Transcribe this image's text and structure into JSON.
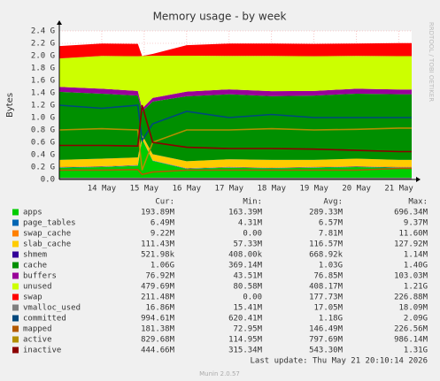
{
  "chart_data": {
    "type": "area",
    "title": "Memory usage - by week",
    "y_label": "Bytes",
    "watermark": "RRDTOOL / TOBI OETIKER",
    "last_update": "Last update: Thu May 21 20:10:14 2026",
    "version": "Munin 2.0.57",
    "legend_columns": [
      "Cur:",
      "Min:",
      "Avg:",
      "Max:"
    ],
    "x": [
      13,
      14,
      14.85,
      14.95,
      15.2,
      16,
      17,
      18,
      19,
      20,
      21,
      21.3
    ],
    "xlim": [
      13,
      21.3
    ],
    "xticks": [
      {
        "value": 14,
        "label": "14 May"
      },
      {
        "value": 15,
        "label": "15 May"
      },
      {
        "value": 16,
        "label": "16 May"
      },
      {
        "value": 17,
        "label": "17 May"
      },
      {
        "value": 18,
        "label": "18 May"
      },
      {
        "value": 19,
        "label": "19 May"
      },
      {
        "value": 20,
        "label": "20 May"
      },
      {
        "value": 21,
        "label": "21 May"
      }
    ],
    "ylim": [
      0,
      2400000000
    ],
    "yticks": [
      {
        "value": 0,
        "label": "0.0"
      },
      {
        "value": 200000000,
        "label": "0.2 G"
      },
      {
        "value": 400000000,
        "label": "0.4 G"
      },
      {
        "value": 600000000,
        "label": "0.6 G"
      },
      {
        "value": 800000000,
        "label": "0.8 G"
      },
      {
        "value": 1000000000,
        "label": "1.0 G"
      },
      {
        "value": 1200000000,
        "label": "1.2 G"
      },
      {
        "value": 1400000000,
        "label": "1.4 G"
      },
      {
        "value": 1600000000,
        "label": "1.6 G"
      },
      {
        "value": 1800000000,
        "label": "1.8 G"
      },
      {
        "value": 2000000000,
        "label": "2.0 G"
      },
      {
        "value": 2200000000,
        "label": "2.2 G"
      },
      {
        "value": 2400000000,
        "label": "2.4 G"
      }
    ],
    "grid": true,
    "series": [
      {
        "name": "apps",
        "color": "#00cc00",
        "stack": true,
        "cur": "193.89M",
        "min": "163.39M",
        "avg": "289.33M",
        "max": "696.34M",
        "values": [
          190000000.0,
          200000000.0,
          220000000.0,
          650000000.0,
          300000000.0,
          170000000.0,
          190000000.0,
          180000000.0,
          190000000.0,
          200000000.0,
          190000000.0,
          190000000.0
        ]
      },
      {
        "name": "page_tables",
        "color": "#0066b3",
        "stack": true,
        "cur": "6.49M",
        "min": "4.31M",
        "avg": "6.57M",
        "max": "9.37M",
        "values": [
          6500000.0,
          6500000.0,
          6500000.0,
          9000000.0,
          6000000.0,
          6500000.0,
          6500000.0,
          6500000.0,
          6500000.0,
          6500000.0,
          6500000.0,
          6500000.0
        ]
      },
      {
        "name": "swap_cache",
        "color": "#ff8000",
        "stack": true,
        "cur": "9.22M",
        "min": "0.00",
        "avg": "7.81M",
        "max": "11.60M",
        "values": [
          9000000.0,
          9000000.0,
          9000000.0,
          0,
          2000000.0,
          8000000.0,
          9000000.0,
          9000000.0,
          9000000.0,
          9000000.0,
          9000000.0,
          9000000.0
        ]
      },
      {
        "name": "slab_cache",
        "color": "#ffcc00",
        "stack": true,
        "cur": "111.43M",
        "min": "57.33M",
        "avg": "116.57M",
        "max": "127.92M",
        "values": [
          110000000.0,
          120000000.0,
          120000000.0,
          60000000.0,
          100000000.0,
          110000000.0,
          120000000.0,
          120000000.0,
          110000000.0,
          120000000.0,
          110000000.0,
          110000000.0
        ]
      },
      {
        "name": "shmem",
        "color": "#330099",
        "stack": true,
        "cur": "521.98k",
        "min": "408.00k",
        "avg": "668.92k",
        "max": "1.14M",
        "values": [
          500000.0,
          500000.0,
          500000.0,
          400000.0,
          500000.0,
          600000.0,
          700000.0,
          700000.0,
          600000.0,
          500000.0,
          500000.0,
          500000.0
        ]
      },
      {
        "name": "cache",
        "color": "#008f00",
        "stack": true,
        "cur": "1.06G",
        "min": "369.14M",
        "avg": "1.03G",
        "max": "1.40G",
        "values": [
          1100000000.0,
          1050000000.0,
          1000000000.0,
          380000000.0,
          850000000.0,
          1050000000.0,
          1050000000.0,
          1030000000.0,
          1040000000.0,
          1050000000.0,
          1060000000.0,
          1060000000.0
        ]
      },
      {
        "name": "buffers",
        "color": "#990099",
        "stack": true,
        "cur": "76.92M",
        "min": "43.51M",
        "avg": "76.85M",
        "max": "103.03M",
        "values": [
          80000000.0,
          80000000.0,
          75000000.0,
          45000000.0,
          60000000.0,
          75000000.0,
          80000000.0,
          80000000.0,
          75000000.0,
          80000000.0,
          77000000.0,
          77000000.0
        ]
      },
      {
        "name": "unused",
        "color": "#ccff00",
        "stack": true,
        "cur": "479.69M",
        "min": "80.58M",
        "avg": "408.17M",
        "max": "1.21G",
        "values": [
          460000000.0,
          530000000.0,
          560000000.0,
          850000000.0,
          680000000.0,
          580000000.0,
          540000000.0,
          570000000.0,
          560000000.0,
          530000000.0,
          540000000.0,
          540000000.0
        ]
      },
      {
        "name": "swap",
        "color": "#ff0000",
        "stack": true,
        "cur": "211.48M",
        "min": "0.00",
        "avg": "177.73M",
        "max": "226.88M",
        "values": [
          200000000.0,
          200000000.0,
          200000000.0,
          0,
          30000000.0,
          170000000.0,
          200000000.0,
          200000000.0,
          200000000.0,
          200000000.0,
          210000000.0,
          210000000.0
        ]
      },
      {
        "name": "vmalloc_used",
        "color": "#808080",
        "stack": false,
        "cur": "16.86M",
        "min": "15.41M",
        "avg": "17.05M",
        "max": "18.09M",
        "values": [
          17000000.0,
          17000000.0,
          17000000.0,
          16000000.0,
          17000000.0,
          17000000.0,
          17000000.0,
          17000000.0,
          17000000.0,
          17000000.0,
          17000000.0,
          17000000.0
        ]
      },
      {
        "name": "committed",
        "color": "#00487d",
        "stack": false,
        "cur": "994.61M",
        "min": "620.41M",
        "avg": "1.18G",
        "max": "2.09G",
        "values": [
          1200000000.0,
          1150000000.0,
          1200000000.0,
          630000000.0,
          900000000.0,
          1100000000.0,
          1000000000.0,
          1050000000.0,
          1000000000.0,
          1000000000.0,
          1000000000.0,
          1000000000.0
        ]
      },
      {
        "name": "mapped",
        "color": "#b35a00",
        "stack": false,
        "cur": "181.38M",
        "min": "72.95M",
        "avg": "146.49M",
        "max": "226.56M",
        "values": [
          150000000.0,
          150000000.0,
          160000000.0,
          80000000.0,
          120000000.0,
          150000000.0,
          150000000.0,
          150000000.0,
          150000000.0,
          150000000.0,
          180000000.0,
          180000000.0
        ]
      },
      {
        "name": "active",
        "color": "#b38f00",
        "stack": false,
        "cur": "829.68M",
        "min": "114.95M",
        "avg": "797.69M",
        "max": "986.14M",
        "values": [
          800000000.0,
          820000000.0,
          800000000.0,
          150000000.0,
          600000000.0,
          800000000.0,
          800000000.0,
          820000000.0,
          800000000.0,
          810000000.0,
          830000000.0,
          830000000.0
        ]
      },
      {
        "name": "inactive",
        "color": "#8c0000",
        "stack": false,
        "cur": "444.66M",
        "min": "315.34M",
        "avg": "543.30M",
        "max": "1.31G",
        "values": [
          550000000.0,
          550000000.0,
          540000000.0,
          1200000000.0,
          600000000.0,
          520000000.0,
          500000000.0,
          500000000.0,
          490000000.0,
          470000000.0,
          450000000.0,
          450000000.0
        ]
      }
    ]
  }
}
